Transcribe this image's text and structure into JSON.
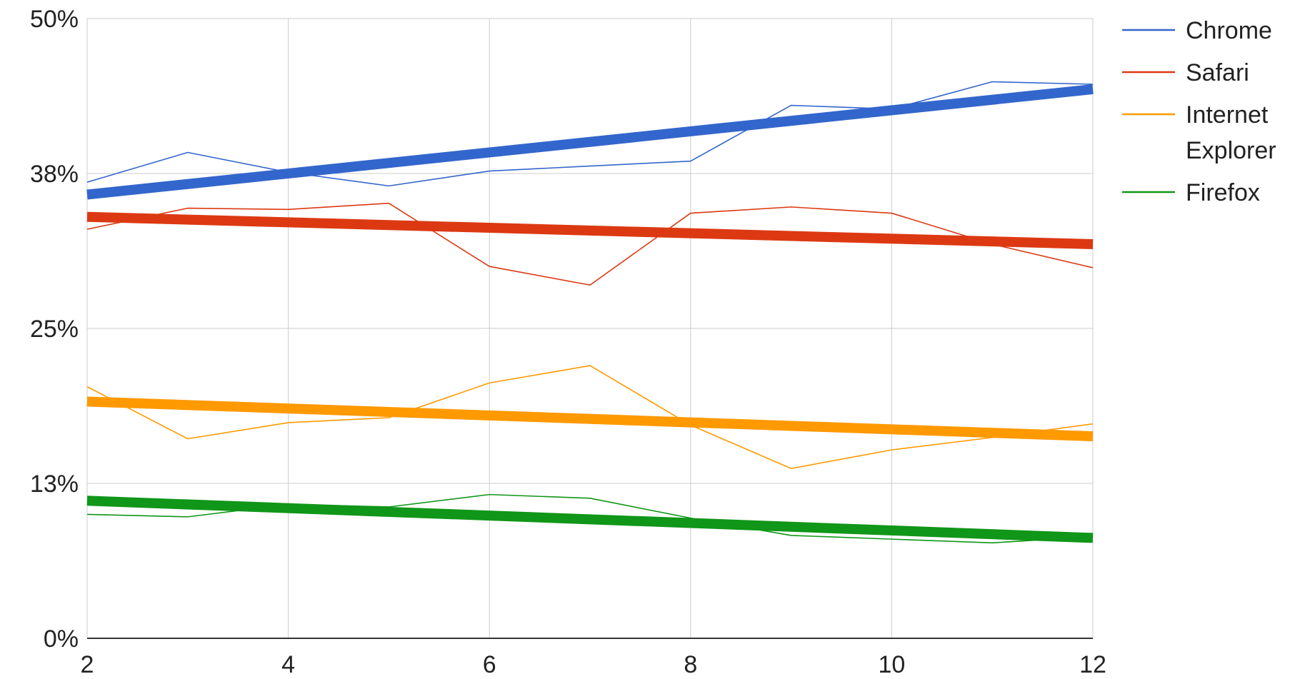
{
  "chart_data": {
    "type": "line",
    "title": "",
    "xlabel": "",
    "ylabel": "",
    "x": [
      2,
      3,
      4,
      5,
      6,
      7,
      8,
      9,
      10,
      11,
      12
    ],
    "xlim": [
      2,
      12
    ],
    "ylim": [
      0,
      50
    ],
    "x_ticks": [
      "2",
      "4",
      "6",
      "8",
      "10",
      "12"
    ],
    "x_tick_values": [
      2,
      4,
      6,
      8,
      10,
      12
    ],
    "y_ticks": [
      "0%",
      "13%",
      "25%",
      "38%",
      "50%"
    ],
    "y_tick_values": [
      0,
      12.5,
      25,
      37.5,
      50
    ],
    "grid": true,
    "legend_position": "right",
    "series": [
      {
        "name": "Chrome",
        "color": "#3366cc",
        "values": [
          36.8,
          39.2,
          37.6,
          36.5,
          37.7,
          38.1,
          38.5,
          43.0,
          42.7,
          44.9,
          44.7
        ],
        "trendline": [
          35.8,
          44.3
        ]
      },
      {
        "name": "Safari",
        "color": "#dc3912",
        "values": [
          33.0,
          34.7,
          34.6,
          35.1,
          30.0,
          28.5,
          34.3,
          34.8,
          34.3,
          31.8,
          29.9
        ],
        "trendline": [
          34.0,
          31.8
        ]
      },
      {
        "name": "Internet Explorer",
        "legend_lines": [
          "Internet",
          "Explorer"
        ],
        "color": "#ff9900",
        "values": [
          20.3,
          16.1,
          17.4,
          17.8,
          20.6,
          22.0,
          17.2,
          13.7,
          15.2,
          16.2,
          17.3
        ],
        "trendline": [
          19.1,
          16.3
        ]
      },
      {
        "name": "Firefox",
        "color": "#109618",
        "values": [
          10.0,
          9.8,
          10.8,
          10.6,
          11.6,
          11.3,
          9.7,
          8.3,
          8.0,
          7.7,
          8.2
        ],
        "trendline": [
          11.1,
          8.1
        ]
      }
    ]
  }
}
